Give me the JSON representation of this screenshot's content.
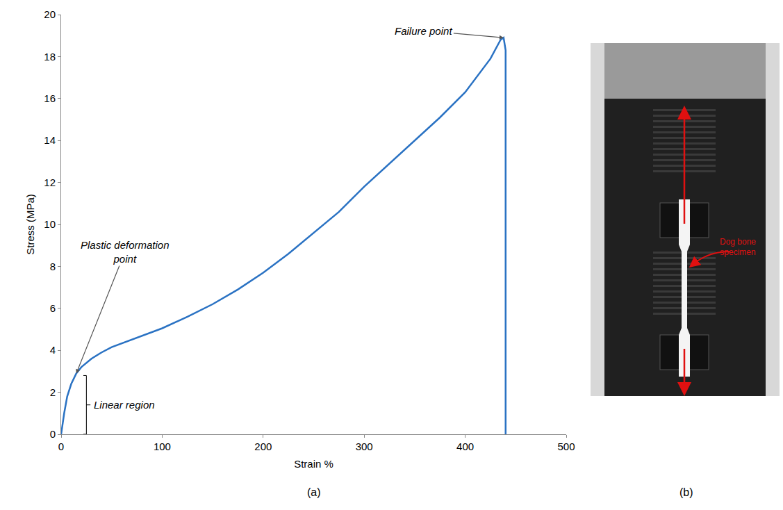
{
  "chart_data": {
    "type": "line",
    "x_label": "Strain %",
    "y_label": "Stress (MPa)",
    "x": [
      0,
      3,
      6,
      10,
      15,
      20,
      30,
      40,
      50,
      75,
      100,
      125,
      150,
      175,
      200,
      225,
      250,
      275,
      300,
      325,
      350,
      375,
      400,
      425,
      435,
      438,
      440,
      440
    ],
    "series": [
      {
        "name": "Stress",
        "color": "#2a72c3",
        "values": [
          0,
          1.0,
          1.8,
          2.4,
          2.9,
          3.2,
          3.6,
          3.9,
          4.15,
          4.6,
          5.05,
          5.6,
          6.2,
          6.9,
          7.7,
          8.6,
          9.6,
          10.6,
          11.8,
          12.9,
          14.0,
          15.1,
          16.3,
          17.9,
          18.8,
          18.9,
          18.3,
          0
        ]
      }
    ],
    "xlim": [
      0,
      500
    ],
    "xticks": [
      0,
      100,
      200,
      300,
      400,
      500
    ],
    "ylim": [
      0,
      20
    ],
    "yticks": [
      0,
      2,
      4,
      6,
      8,
      10,
      12,
      14,
      16,
      18,
      20
    ],
    "grid": false,
    "annotations": [
      {
        "text": "Failure point",
        "x": 438,
        "y": 18.9
      },
      {
        "text": "Plastic deformation point",
        "x": 15,
        "y": 2.9
      },
      {
        "text": "Linear region",
        "x": 22,
        "y0": 0,
        "y1": 2.8
      }
    ]
  },
  "panel_labels": [
    "(a)",
    "(b)"
  ],
  "photo": {
    "label": "Dog bone specimen"
  }
}
